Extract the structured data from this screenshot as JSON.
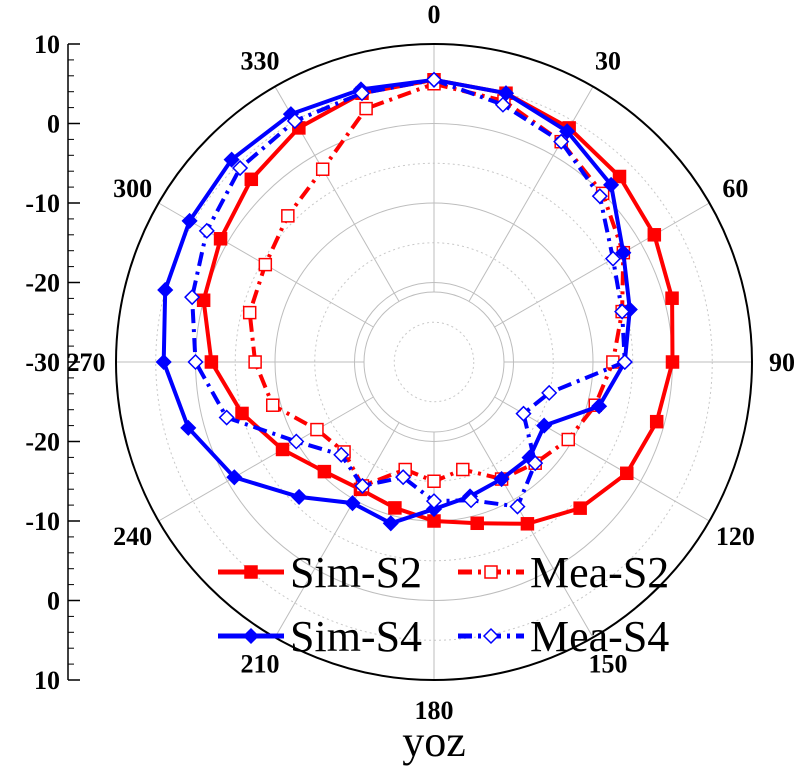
{
  "chart_data": {
    "type": "polar-line",
    "title": "yoz",
    "radial_axis": {
      "range_db": [
        -30,
        10
      ],
      "tick_labels": [
        "10",
        "0",
        "-10",
        "-20",
        "-30",
        "-20",
        "-10",
        "0",
        "10"
      ],
      "tick_values": [
        10,
        0,
        -10,
        -20,
        -30,
        -20,
        -10,
        0,
        10
      ]
    },
    "angle_axis": {
      "direction": "clockwise",
      "zero_at": "top",
      "labels": [
        "0",
        "30",
        "60",
        "90",
        "120",
        "150",
        "180",
        "210",
        "240",
        "270",
        "300",
        "330"
      ],
      "label_angles": [
        0,
        30,
        60,
        90,
        120,
        150,
        180,
        210,
        240,
        270,
        300,
        330
      ]
    },
    "grid": true,
    "legend_position": "bottom-center",
    "series": [
      {
        "name": "Sim-S2",
        "color": "#ff0000",
        "line": "solid",
        "marker": "filled-square",
        "theta": [
          0,
          15,
          30,
          45,
          60,
          75,
          90,
          105,
          120,
          135,
          150,
          165,
          180,
          195,
          210,
          225,
          240,
          255,
          270,
          285,
          300,
          315,
          330,
          345,
          360
        ],
        "r_db": [
          5.5,
          5,
          4,
          3,
          2,
          1,
          0,
          -1,
          -2,
          -4,
          -6.5,
          -9,
          -10,
          -11,
          -11.5,
          -10.5,
          -8,
          -5,
          -2,
          0,
          1,
          2.5,
          4,
          5,
          5.5
        ]
      },
      {
        "name": "Mea-S2",
        "color": "#ff0000",
        "line": "dash-dot",
        "marker": "open-square",
        "theta": [
          0,
          15,
          30,
          45,
          60,
          75,
          90,
          105,
          120,
          135,
          150,
          165,
          180,
          195,
          210,
          225,
          240,
          255,
          270,
          285,
          300,
          315,
          330,
          345,
          360
        ],
        "r_db": [
          5,
          4,
          2,
          0,
          -2.5,
          -5.5,
          -7.5,
          -9,
          -10.5,
          -12,
          -13,
          -16,
          -15,
          -16,
          -12,
          -14,
          -13,
          -9,
          -7.5,
          -6,
          -5.5,
          -4,
          -2,
          3,
          5
        ]
      },
      {
        "name": "Sim-S4",
        "color": "#0000ff",
        "line": "solid",
        "marker": "filled-diamond",
        "theta": [
          0,
          15,
          30,
          45,
          60,
          75,
          90,
          105,
          120,
          135,
          150,
          165,
          180,
          195,
          210,
          225,
          240,
          255,
          270,
          285,
          300,
          315,
          330,
          345,
          360
        ],
        "r_db": [
          5.5,
          5,
          3.5,
          1.5,
          -2.5,
          -4.5,
          -6,
          -8.5,
          -14,
          -13,
          -13,
          -12.5,
          -11.5,
          -9,
          -9.5,
          -6,
          -1,
          2,
          4,
          5,
          5.5,
          6,
          6,
          5.5,
          5.5
        ]
      },
      {
        "name": "Mea-S4",
        "color": "#0000ff",
        "line": "dash-dot",
        "marker": "open-diamond",
        "theta": [
          0,
          15,
          30,
          45,
          60,
          75,
          90,
          105,
          120,
          135,
          150,
          165,
          180,
          195,
          210,
          225,
          240,
          255,
          270,
          285,
          300,
          315,
          330,
          345,
          360
        ],
        "r_db": [
          5.5,
          3.5,
          2,
          -0.5,
          -4,
          -5.5,
          -6,
          -15,
          -17,
          -12,
          -9,
          -12,
          -12.5,
          -15,
          -12,
          -13.5,
          -10,
          -3,
          0,
          1.5,
          3,
          4.5,
          5,
          5,
          5.5
        ]
      }
    ]
  }
}
